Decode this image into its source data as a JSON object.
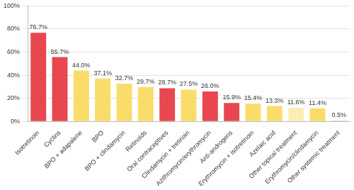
{
  "chart_data": {
    "type": "bar",
    "categories": [
      "Isotretinoin",
      "Cyclins",
      "BPO + adapalene",
      "BPO",
      "BPO + clindamycin",
      "Retinoids",
      "Oral contraceptives",
      "Clindamycin + tretinoin",
      "Azithromycin/erythromycin",
      "Anti-androgens",
      "Erythromycin + isotretinoin",
      "Azelaic acid",
      "Other topical treatment",
      "Erythromycin/clindamycin",
      "Other systemic treatment"
    ],
    "values": [
      76.7,
      55.7,
      44.0,
      37.1,
      32.7,
      29.7,
      28.7,
      27.5,
      26.0,
      15.9,
      15.4,
      13.3,
      11.6,
      11.4,
      0.5
    ],
    "value_labels": [
      "76.7%",
      "55.7%",
      "44.0%",
      "37.1%",
      "32.7%",
      "29.7%",
      "28.7%",
      "27.5%",
      "26.0%",
      "15.9%",
      "15.4%",
      "13.3%",
      "11.6%",
      "11.4%",
      "0.5%"
    ],
    "colors": [
      "#e8474f",
      "#e8474f",
      "#f9dc6a",
      "#f9dc6a",
      "#f9dc6a",
      "#f9dc6a",
      "#e8474f",
      "#f9dc6a",
      "#e8474f",
      "#e8474f",
      "#f9dc6a",
      "#f9dc6a",
      "#fbedb4",
      "#f9dc6a",
      "#e8474f"
    ],
    "ylim": [
      0,
      100
    ],
    "yticks": [
      {
        "value": 0,
        "label": "0%"
      },
      {
        "value": 20,
        "label": "20%"
      },
      {
        "value": 40,
        "label": "40%"
      },
      {
        "value": 60,
        "label": "60%"
      },
      {
        "value": 80,
        "label": "80%"
      },
      {
        "value": 100,
        "label": "100%"
      }
    ],
    "grid": true,
    "data_labels": true
  }
}
